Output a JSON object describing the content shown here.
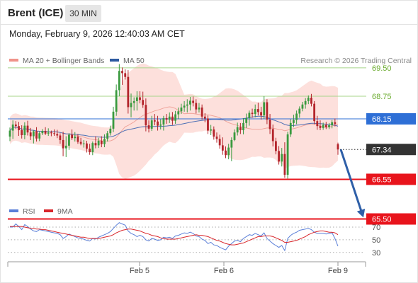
{
  "header": {
    "instrument": "Brent (ICE)",
    "timeframe": "30 MIN",
    "datetime": "Monday, February 9, 2026 12:40:03 AM CET"
  },
  "legend": {
    "ma20": "MA 20 + Bollinger Bands",
    "ma50": "MA 50",
    "rsi": "RSI",
    "rsi_ma": "9MA"
  },
  "credit": "Research © 2026 Trading Central",
  "colors": {
    "resistance_line": "#a7d58a",
    "resistance_text": "#6aab2e",
    "support": "#e8141c",
    "pivot": "#2e6fd6",
    "last_price": "#333333",
    "bollinger_fill": "#fde0dc",
    "ma20": "#f0a59c",
    "ma50": "#4d6fb5",
    "candle_up": "#3a9a3f",
    "candle_down": "#b3242b",
    "rsi": "#5a7fd8",
    "rsi_ma": "#d9262b",
    "projection_arrow": "#2e5fa8"
  },
  "chart_data": [
    {
      "type": "candlestick",
      "title": "Brent (ICE) 30 MIN",
      "x_ticks": [
        "Feb 5",
        "Feb 6",
        "Feb 9"
      ],
      "y_scale": "linear",
      "levels": [
        {
          "label": "69.50",
          "value": 69.5,
          "kind": "resistance"
        },
        {
          "label": "68.75",
          "value": 68.75,
          "kind": "resistance"
        },
        {
          "label": "68.15",
          "value": 68.15,
          "kind": "pivot"
        },
        {
          "label": "67.34",
          "value": 67.34,
          "kind": "last"
        },
        {
          "label": "66.55",
          "value": 66.55,
          "kind": "support"
        },
        {
          "label": "65.50",
          "value": 65.5,
          "kind": "support"
        }
      ],
      "projection": {
        "from": 67.34,
        "to": 65.5
      },
      "candles_ohlc": [
        [
          67.68,
          67.92,
          67.56,
          67.84
        ],
        [
          67.84,
          68.11,
          67.62,
          68.0
        ],
        [
          68.0,
          68.09,
          67.88,
          67.96
        ],
        [
          67.96,
          68.07,
          67.7,
          67.85
        ],
        [
          67.85,
          67.98,
          67.63,
          67.72
        ],
        [
          67.72,
          68.06,
          67.61,
          67.97
        ],
        [
          67.97,
          68.1,
          67.71,
          67.79
        ],
        [
          67.79,
          67.91,
          67.59,
          67.69
        ],
        [
          67.69,
          67.85,
          67.5,
          67.82
        ],
        [
          67.82,
          67.93,
          67.55,
          67.63
        ],
        [
          67.63,
          67.82,
          67.56,
          67.77
        ],
        [
          67.77,
          67.88,
          67.72,
          67.83
        ],
        [
          67.83,
          67.93,
          67.72,
          67.76
        ],
        [
          67.76,
          67.9,
          67.7,
          67.79
        ],
        [
          67.79,
          67.84,
          67.69,
          67.77
        ],
        [
          67.77,
          67.87,
          67.7,
          67.75
        ],
        [
          67.75,
          67.86,
          67.64,
          67.71
        ],
        [
          67.71,
          67.77,
          67.49,
          67.59
        ],
        [
          67.59,
          67.81,
          67.16,
          67.37
        ],
        [
          67.37,
          67.69,
          67.14,
          67.44
        ],
        [
          67.44,
          67.77,
          67.33,
          67.73
        ],
        [
          67.73,
          67.87,
          67.59,
          67.64
        ],
        [
          67.64,
          67.8,
          67.55,
          67.68
        ],
        [
          67.68,
          67.75,
          67.49,
          67.54
        ],
        [
          67.54,
          67.65,
          67.45,
          67.49
        ],
        [
          67.49,
          67.59,
          67.39,
          67.5
        ],
        [
          67.5,
          67.57,
          67.26,
          67.36
        ],
        [
          67.36,
          67.49,
          67.2,
          67.27
        ],
        [
          67.27,
          67.55,
          67.19,
          67.51
        ],
        [
          67.51,
          67.69,
          67.37,
          67.45
        ],
        [
          67.45,
          67.65,
          67.38,
          67.57
        ],
        [
          67.57,
          67.69,
          67.4,
          67.48
        ],
        [
          67.48,
          67.74,
          67.4,
          67.62
        ],
        [
          67.62,
          67.83,
          67.55,
          67.77
        ],
        [
          67.77,
          67.97,
          67.71,
          67.89
        ],
        [
          67.89,
          68.47,
          67.8,
          68.34
        ],
        [
          68.34,
          69.06,
          68.23,
          68.91
        ],
        [
          68.91,
          69.6,
          68.75,
          69.42
        ],
        [
          69.42,
          69.51,
          69.05,
          69.36
        ],
        [
          69.36,
          69.46,
          69.19,
          69.26
        ],
        [
          69.26,
          69.44,
          68.29,
          68.46
        ],
        [
          68.46,
          68.82,
          68.19,
          68.57
        ],
        [
          68.57,
          68.72,
          68.37,
          68.62
        ],
        [
          68.62,
          68.88,
          68.37,
          68.72
        ],
        [
          68.72,
          68.88,
          68.56,
          68.65
        ],
        [
          68.65,
          68.87,
          68.44,
          68.52
        ],
        [
          68.52,
          68.69,
          67.82,
          67.98
        ],
        [
          67.98,
          68.11,
          67.79,
          67.89
        ],
        [
          67.89,
          68.23,
          67.83,
          68.11
        ],
        [
          68.11,
          68.28,
          67.98,
          68.08
        ],
        [
          68.08,
          68.23,
          67.84,
          67.97
        ],
        [
          67.97,
          68.14,
          67.87,
          68.0
        ],
        [
          68.0,
          68.23,
          67.84,
          68.17
        ],
        [
          68.17,
          68.28,
          68.02,
          68.13
        ],
        [
          68.13,
          68.32,
          68.04,
          68.21
        ],
        [
          68.21,
          68.33,
          67.99,
          68.1
        ],
        [
          68.1,
          68.36,
          68.02,
          68.27
        ],
        [
          68.27,
          68.45,
          68.14,
          68.35
        ],
        [
          68.35,
          68.55,
          68.28,
          68.45
        ],
        [
          68.45,
          68.62,
          68.34,
          68.5
        ],
        [
          68.5,
          68.67,
          68.32,
          68.53
        ],
        [
          68.53,
          68.73,
          68.37,
          68.63
        ],
        [
          68.63,
          68.74,
          68.48,
          68.57
        ],
        [
          68.57,
          68.67,
          68.29,
          68.4
        ],
        [
          68.4,
          68.57,
          68.32,
          68.45
        ],
        [
          68.45,
          68.53,
          68.13,
          68.21
        ],
        [
          68.21,
          68.3,
          68.06,
          68.16
        ],
        [
          68.16,
          68.24,
          67.75,
          67.84
        ],
        [
          67.84,
          67.99,
          67.72,
          67.87
        ],
        [
          67.87,
          67.95,
          67.6,
          67.68
        ],
        [
          67.68,
          67.79,
          67.52,
          67.62
        ],
        [
          67.62,
          67.73,
          67.36,
          67.45
        ],
        [
          67.45,
          67.66,
          67.2,
          67.31
        ],
        [
          67.31,
          67.42,
          67.11,
          67.19
        ],
        [
          67.19,
          67.49,
          67.08,
          67.39
        ],
        [
          67.39,
          67.66,
          67.03,
          67.59
        ],
        [
          67.59,
          67.87,
          67.56,
          67.79
        ],
        [
          67.79,
          68.05,
          67.71,
          67.93
        ],
        [
          67.93,
          68.04,
          67.75,
          67.85
        ],
        [
          67.85,
          68.17,
          67.74,
          68.04
        ],
        [
          68.04,
          68.29,
          67.91,
          68.17
        ],
        [
          68.17,
          68.37,
          67.97,
          68.31
        ],
        [
          68.31,
          68.42,
          68.18,
          68.28
        ],
        [
          68.28,
          68.53,
          68.19,
          68.41
        ],
        [
          68.41,
          68.58,
          68.24,
          68.33
        ],
        [
          68.33,
          68.47,
          68.13,
          68.24
        ],
        [
          68.24,
          68.75,
          68.15,
          68.59
        ],
        [
          68.59,
          68.67,
          68.01,
          68.13
        ],
        [
          68.13,
          68.28,
          67.75,
          67.88
        ],
        [
          67.88,
          68.0,
          67.42,
          67.56
        ],
        [
          67.56,
          67.65,
          67.21,
          67.3
        ],
        [
          67.3,
          67.43,
          66.94,
          67.02
        ],
        [
          67.02,
          67.38,
          66.89,
          67.22
        ],
        [
          67.22,
          67.53,
          66.59,
          66.67
        ],
        [
          66.67,
          67.81,
          66.57,
          67.74
        ],
        [
          67.74,
          68.14,
          67.67,
          68.04
        ],
        [
          68.04,
          68.26,
          67.93,
          68.12
        ],
        [
          68.12,
          68.37,
          68.01,
          68.29
        ],
        [
          68.29,
          68.48,
          68.18,
          68.42
        ],
        [
          68.42,
          68.6,
          68.35,
          68.53
        ],
        [
          68.53,
          68.7,
          68.42,
          68.62
        ],
        [
          68.62,
          68.77,
          68.54,
          68.71
        ],
        [
          68.71,
          68.81,
          68.48,
          68.55
        ],
        [
          68.55,
          68.62,
          68.01,
          68.09
        ],
        [
          68.09,
          68.23,
          67.86,
          67.96
        ],
        [
          67.96,
          68.11,
          67.85,
          67.91
        ],
        [
          67.91,
          68.05,
          67.86,
          67.99
        ],
        [
          67.99,
          68.07,
          67.88,
          67.93
        ],
        [
          67.93,
          68.04,
          67.88,
          67.98
        ],
        [
          67.98,
          68.12,
          67.9,
          68.06
        ],
        [
          68.06,
          68.16,
          67.95,
          68.02
        ],
        [
          67.48,
          67.52,
          67.2,
          67.34
        ]
      ]
    },
    {
      "type": "line",
      "title": "RSI",
      "y_ticks": [
        70,
        50,
        30
      ],
      "ylim": [
        20,
        80
      ],
      "series": [
        {
          "name": "RSI",
          "values": [
            70,
            70,
            75,
            71,
            66,
            74,
            71,
            67,
            64,
            63,
            66,
            65,
            64,
            63,
            62,
            61,
            60,
            58,
            52,
            55,
            59,
            57,
            55,
            53,
            52,
            51,
            49,
            48,
            52,
            51,
            54,
            56,
            58,
            60,
            63,
            68,
            73,
            77,
            75,
            73,
            64,
            60,
            58,
            55,
            57,
            55,
            50,
            48,
            52,
            51,
            49,
            50,
            54,
            53,
            54,
            52,
            56,
            57,
            59,
            61,
            60,
            62,
            60,
            56,
            55,
            51,
            49,
            44,
            46,
            42,
            41,
            38,
            36,
            34,
            40,
            44,
            48,
            49,
            47,
            52,
            55,
            58,
            57,
            60,
            58,
            56,
            61,
            52,
            48,
            44,
            41,
            38,
            41,
            33,
            52,
            57,
            60,
            62,
            65,
            66,
            67,
            68,
            66,
            62,
            60,
            60,
            60,
            59,
            60,
            61,
            52,
            40
          ]
        },
        {
          "name": "9MA",
          "values": [
            71,
            71,
            71,
            71,
            71,
            70,
            69,
            68,
            68,
            67,
            67,
            66,
            66,
            65,
            64,
            63,
            62,
            61,
            60,
            59,
            58,
            57,
            56,
            55,
            54,
            54,
            53,
            52,
            52,
            52,
            52,
            53,
            54,
            55,
            56,
            58,
            61,
            63,
            65,
            66,
            67,
            67,
            66,
            65,
            64,
            62,
            60,
            59,
            57,
            56,
            55,
            53,
            52,
            51,
            51,
            51,
            51,
            52,
            53,
            54,
            55,
            56,
            57,
            58,
            57,
            57,
            56,
            55,
            53,
            51,
            49,
            48,
            46,
            44,
            43,
            42,
            42,
            43,
            44,
            45,
            47,
            49,
            51,
            53,
            55,
            55,
            56,
            56,
            56,
            55,
            53,
            51,
            49,
            46,
            46,
            47,
            48,
            49,
            51,
            53,
            55,
            58,
            60,
            62,
            63,
            64,
            64,
            63,
            62,
            62,
            61,
            58
          ]
        }
      ]
    }
  ]
}
